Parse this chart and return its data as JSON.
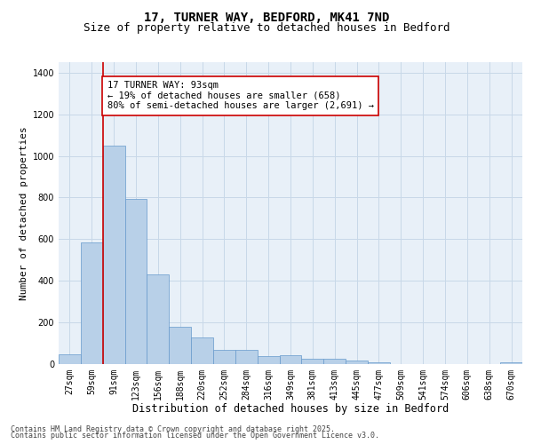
{
  "title1": "17, TURNER WAY, BEDFORD, MK41 7ND",
  "title2": "Size of property relative to detached houses in Bedford",
  "xlabel": "Distribution of detached houses by size in Bedford",
  "ylabel": "Number of detached properties",
  "categories": [
    "27sqm",
    "59sqm",
    "91sqm",
    "123sqm",
    "156sqm",
    "188sqm",
    "220sqm",
    "252sqm",
    "284sqm",
    "316sqm",
    "349sqm",
    "381sqm",
    "413sqm",
    "445sqm",
    "477sqm",
    "509sqm",
    "541sqm",
    "574sqm",
    "606sqm",
    "638sqm",
    "670sqm"
  ],
  "values": [
    45,
    585,
    1050,
    795,
    430,
    180,
    128,
    68,
    68,
    40,
    42,
    27,
    25,
    18,
    10,
    0,
    0,
    0,
    0,
    0,
    10
  ],
  "bar_color": "#b8d0e8",
  "bar_edge_color": "#6699cc",
  "vline_color": "#cc0000",
  "annotation_text": "17 TURNER WAY: 93sqm\n← 19% of detached houses are smaller (658)\n80% of semi-detached houses are larger (2,691) →",
  "annotation_box_color": "#ffffff",
  "annotation_box_edge_color": "#cc0000",
  "ylim": [
    0,
    1450
  ],
  "yticks": [
    0,
    200,
    400,
    600,
    800,
    1000,
    1200,
    1400
  ],
  "grid_color": "#c8d8e8",
  "background_color": "#e8f0f8",
  "footer1": "Contains HM Land Registry data © Crown copyright and database right 2025.",
  "footer2": "Contains public sector information licensed under the Open Government Licence v3.0.",
  "title1_fontsize": 10,
  "title2_fontsize": 9,
  "xlabel_fontsize": 8.5,
  "ylabel_fontsize": 8,
  "tick_fontsize": 7,
  "annotation_fontsize": 7.5
}
